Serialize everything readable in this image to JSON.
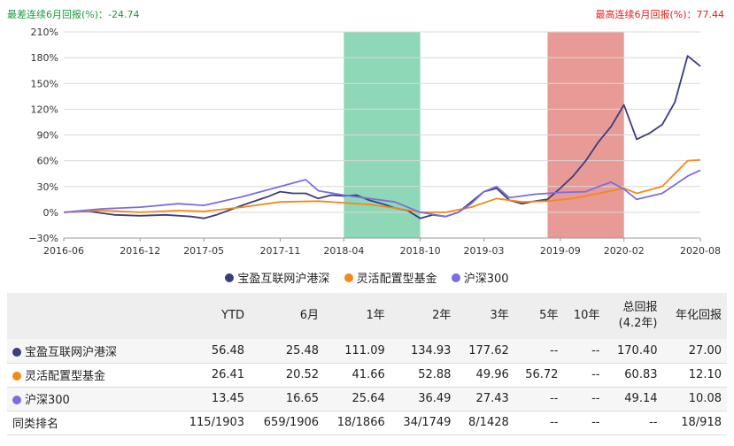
{
  "stats": {
    "worst_6m": "最差连续6月回报(%)：-24.74",
    "best_6m": "最高连续6月回报(%)：77.44"
  },
  "colors": {
    "fund": "#3b3d7e",
    "category": "#f28a18",
    "index": "#7b6ee0",
    "green_band": "#8ed8b8",
    "red_band": "#e89a96",
    "grid": "#d9d9d9"
  },
  "chart_data": {
    "type": "line",
    "y_ticks": [
      "210%",
      "180%",
      "150%",
      "120%",
      "90%",
      "60%",
      "30%",
      "0%",
      "−30%"
    ],
    "y_range": [
      -30,
      210
    ],
    "x_ticks": [
      "2016-06",
      "2016-12",
      "2017-05",
      "2017-11",
      "2018-04",
      "2018-10",
      "2019-03",
      "2019-09",
      "2020-02",
      "2020-08"
    ],
    "x_range": [
      "2016-06",
      "2020-08"
    ],
    "shaded_periods": [
      {
        "label": "worst-6m",
        "start": "2018-04",
        "end": "2018-10",
        "color": "#8ed8b8"
      },
      {
        "label": "best-6m",
        "start": "2019-08",
        "end": "2020-02",
        "color": "#e89a96"
      }
    ],
    "series": [
      {
        "name": "宝盈互联网沪港深",
        "color": "#3b3d7e",
        "points": [
          [
            "2016-06",
            0
          ],
          [
            "2016-08",
            1
          ],
          [
            "2016-10",
            -3
          ],
          [
            "2016-12",
            -4
          ],
          [
            "2017-02",
            -3
          ],
          [
            "2017-04",
            -5
          ],
          [
            "2017-05",
            -7
          ],
          [
            "2017-06",
            -3
          ],
          [
            "2017-08",
            8
          ],
          [
            "2017-10",
            18
          ],
          [
            "2017-11",
            24
          ],
          [
            "2017-12",
            22
          ],
          [
            "2018-01",
            22
          ],
          [
            "2018-02",
            16
          ],
          [
            "2018-03",
            20
          ],
          [
            "2018-04",
            19
          ],
          [
            "2018-05",
            20
          ],
          [
            "2018-06",
            14
          ],
          [
            "2018-07",
            10
          ],
          [
            "2018-08",
            5
          ],
          [
            "2018-09",
            2
          ],
          [
            "2018-10",
            -7
          ],
          [
            "2018-11",
            -3
          ],
          [
            "2018-12",
            -5
          ],
          [
            "2019-01",
            0
          ],
          [
            "2019-02",
            12
          ],
          [
            "2019-03",
            24
          ],
          [
            "2019-04",
            28
          ],
          [
            "2019-05",
            14
          ],
          [
            "2019-06",
            10
          ],
          [
            "2019-07",
            13
          ],
          [
            "2019-08",
            15
          ],
          [
            "2019-09",
            28
          ],
          [
            "2019-10",
            42
          ],
          [
            "2019-11",
            60
          ],
          [
            "2019-12",
            82
          ],
          [
            "2020-01",
            100
          ],
          [
            "2020-02",
            125
          ],
          [
            "2020-03",
            85
          ],
          [
            "2020-04",
            92
          ],
          [
            "2020-05",
            102
          ],
          [
            "2020-06",
            128
          ],
          [
            "2020-07",
            182
          ],
          [
            "2020-08",
            170
          ]
        ]
      },
      {
        "name": "灵活配置型基金",
        "color": "#f28a18",
        "points": [
          [
            "2016-06",
            0
          ],
          [
            "2016-09",
            2
          ],
          [
            "2016-12",
            0
          ],
          [
            "2017-03",
            2
          ],
          [
            "2017-05",
            1
          ],
          [
            "2017-08",
            6
          ],
          [
            "2017-11",
            12
          ],
          [
            "2018-02",
            13
          ],
          [
            "2018-04",
            11
          ],
          [
            "2018-06",
            9
          ],
          [
            "2018-08",
            5
          ],
          [
            "2018-10",
            0
          ],
          [
            "2018-12",
            0
          ],
          [
            "2019-02",
            6
          ],
          [
            "2019-04",
            16
          ],
          [
            "2019-06",
            12
          ],
          [
            "2019-08",
            13
          ],
          [
            "2019-10",
            16
          ],
          [
            "2019-12",
            22
          ],
          [
            "2020-02",
            28
          ],
          [
            "2020-03",
            22
          ],
          [
            "2020-05",
            30
          ],
          [
            "2020-07",
            60
          ],
          [
            "2020-08",
            61
          ]
        ]
      },
      {
        "name": "沪深300",
        "color": "#7b6ee0",
        "points": [
          [
            "2016-06",
            0
          ],
          [
            "2016-09",
            4
          ],
          [
            "2016-12",
            6
          ],
          [
            "2017-03",
            10
          ],
          [
            "2017-05",
            8
          ],
          [
            "2017-08",
            18
          ],
          [
            "2017-11",
            30
          ],
          [
            "2018-01",
            38
          ],
          [
            "2018-02",
            25
          ],
          [
            "2018-04",
            20
          ],
          [
            "2018-06",
            16
          ],
          [
            "2018-08",
            12
          ],
          [
            "2018-10",
            0
          ],
          [
            "2018-12",
            -5
          ],
          [
            "2019-01",
            0
          ],
          [
            "2019-02",
            10
          ],
          [
            "2019-03",
            24
          ],
          [
            "2019-04",
            30
          ],
          [
            "2019-05",
            17
          ],
          [
            "2019-07",
            21
          ],
          [
            "2019-09",
            23
          ],
          [
            "2019-11",
            24
          ],
          [
            "2019-12",
            30
          ],
          [
            "2020-01",
            35
          ],
          [
            "2020-02",
            27
          ],
          [
            "2020-03",
            15
          ],
          [
            "2020-05",
            22
          ],
          [
            "2020-07",
            42
          ],
          [
            "2020-08",
            49
          ]
        ]
      }
    ]
  },
  "legend": [
    "宝盈互联网沪港深",
    "灵活配置型基金",
    "沪深300"
  ],
  "table": {
    "headers": [
      "",
      "YTD",
      "6月",
      "1年",
      "2年",
      "3年",
      "5年",
      "10年",
      "总回报",
      "(4.2年)",
      "年化回报"
    ],
    "rows": [
      {
        "name": "宝盈互联网沪港深",
        "dot": "#3b3d7e",
        "values": [
          "56.48",
          "25.48",
          "111.09",
          "134.93",
          "177.62",
          "--",
          "--",
          "170.40",
          "27.00"
        ]
      },
      {
        "name": "灵活配置型基金",
        "dot": "#f28a18",
        "values": [
          "26.41",
          "20.52",
          "41.66",
          "52.88",
          "49.96",
          "56.72",
          "--",
          "60.83",
          "12.10"
        ]
      },
      {
        "name": "沪深300",
        "dot": "#7b6ee0",
        "values": [
          "13.45",
          "16.65",
          "25.64",
          "36.49",
          "27.43",
          "--",
          "--",
          "49.14",
          "10.08"
        ]
      },
      {
        "name": "同类排名",
        "dot": "",
        "values": [
          "115/1903",
          "659/1906",
          "18/1866",
          "34/1749",
          "8/1428",
          "--",
          "--",
          "--",
          "18/918"
        ]
      }
    ]
  }
}
